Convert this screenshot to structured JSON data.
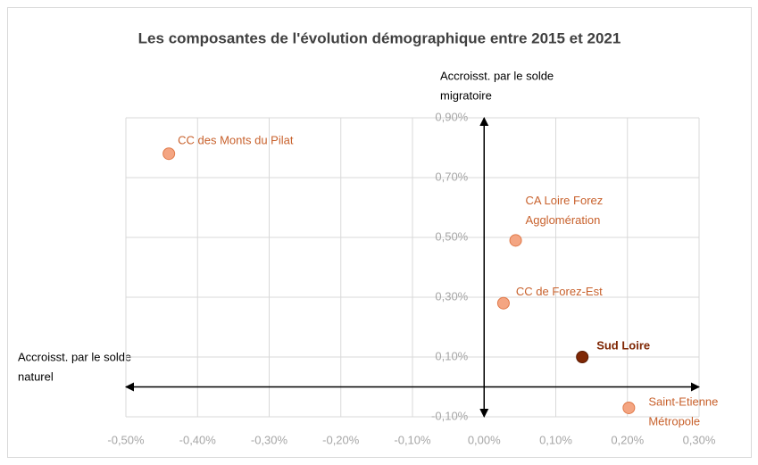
{
  "chart_data": {
    "type": "scatter",
    "title": "Les composantes de l'évolution démographique entre 2015 et 2021",
    "x_label": [
      "Accroisst. par le solde",
      "naturel"
    ],
    "y_label": [
      "Accroisst. par le solde",
      "migratoire"
    ],
    "xlim": [
      -0.5,
      0.3
    ],
    "ylim": [
      -0.1,
      0.9
    ],
    "xticks": [
      {
        "value": -0.5,
        "label": "-0,50%"
      },
      {
        "value": -0.4,
        "label": "-0,40%"
      },
      {
        "value": -0.3,
        "label": "-0,30%"
      },
      {
        "value": -0.2,
        "label": "-0,20%"
      },
      {
        "value": -0.1,
        "label": "-0,10%"
      },
      {
        "value": 0,
        "label": "0,00%"
      },
      {
        "value": 0.1,
        "label": "0,10%"
      },
      {
        "value": 0.2,
        "label": "0,20%"
      },
      {
        "value": 0.3,
        "label": "0,30%"
      }
    ],
    "yticks": [
      {
        "value": -0.1,
        "label": "-0,10%"
      },
      {
        "value": 0.1,
        "label": "0,10%"
      },
      {
        "value": 0.3,
        "label": "0,30%"
      },
      {
        "value": 0.5,
        "label": "0,50%"
      },
      {
        "value": 0.7,
        "label": "0,70%"
      },
      {
        "value": 0.9,
        "label": "0,90%"
      }
    ],
    "grid": true,
    "series": [
      {
        "name": [
          "CC des Monts du Pilat"
        ],
        "color": "#f4a582",
        "x": [
          -0.44
        ],
        "values": [
          0.78
        ]
      },
      {
        "name": [
          "CA Loire Forez",
          "Agglomération"
        ],
        "color": "#f4a582",
        "x": [
          0.044
        ],
        "values": [
          0.49
        ]
      },
      {
        "name": [
          "CC de Forez-Est"
        ],
        "color": "#f4a582",
        "x": [
          0.027
        ],
        "values": [
          0.28
        ]
      },
      {
        "name": [
          "Sud Loire"
        ],
        "color": "#7f2704",
        "x": [
          0.137
        ],
        "values": [
          0.1
        ]
      },
      {
        "name": [
          "Saint-Etienne",
          "Métropole"
        ],
        "color": "#f4a582",
        "x": [
          0.202
        ],
        "values": [
          -0.07
        ]
      }
    ]
  }
}
